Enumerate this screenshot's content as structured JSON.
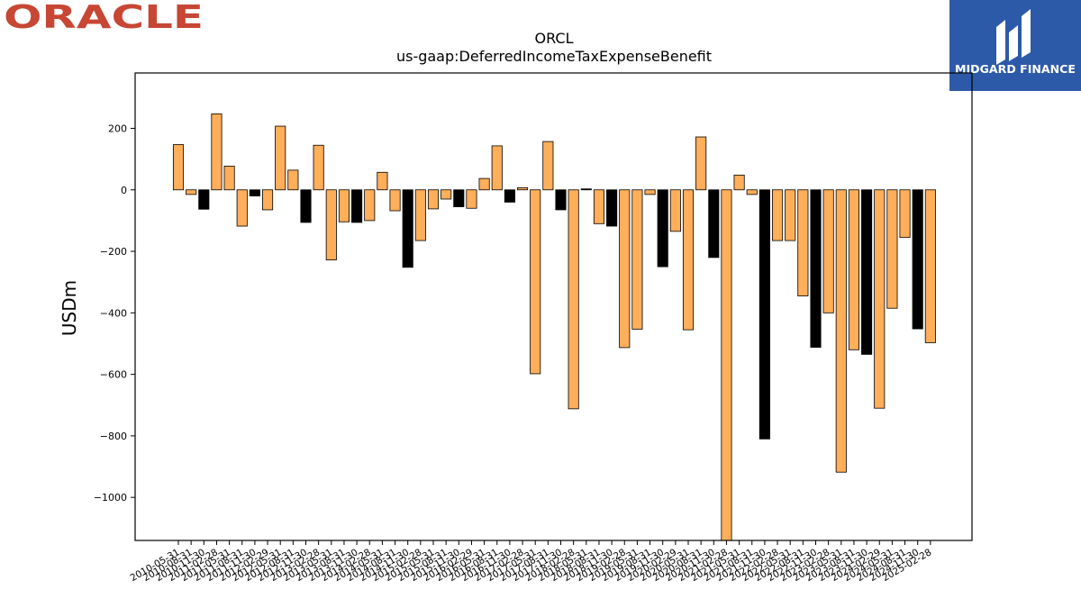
{
  "logos": {
    "left_text": "ORACLE",
    "left_color": "#c74634",
    "right_text": "MIDGARD FINANCE",
    "right_bg": "#2d5aa8",
    "right_color": "#ffffff"
  },
  "chart_data": {
    "type": "bar",
    "title": "ORCL",
    "subtitle": "us-gaap:DeferredIncomeTaxExpenseBenefit",
    "ylabel": "USDm",
    "xlabel": "",
    "ylim": [
      -1140,
      380
    ],
    "yticks": [
      200,
      0,
      -200,
      -400,
      -600,
      -800,
      -1000
    ],
    "grid": false,
    "colors": {
      "positive_pattern": "#ffae5a",
      "alt": "#000000",
      "edge": "#000000"
    },
    "categories": [
      "2010-05-31",
      "2010-08-31",
      "2010-11-30",
      "2011-02-28",
      "2011-05-31",
      "2011-08-31",
      "2011-11-30",
      "2012-02-29",
      "2012-05-31",
      "2012-08-31",
      "2012-11-30",
      "2013-02-28",
      "2013-05-31",
      "2013-08-31",
      "2013-11-30",
      "2014-02-28",
      "2014-05-31",
      "2014-08-31",
      "2014-11-30",
      "2015-02-28",
      "2015-05-31",
      "2015-08-31",
      "2015-11-30",
      "2016-02-29",
      "2016-05-31",
      "2016-08-31",
      "2016-11-30",
      "2017-02-28",
      "2017-05-31",
      "2017-08-31",
      "2017-11-30",
      "2018-02-28",
      "2018-05-31",
      "2018-08-31",
      "2018-11-30",
      "2019-02-28",
      "2019-05-31",
      "2019-08-31",
      "2019-11-30",
      "2020-02-29",
      "2020-05-31",
      "2020-08-31",
      "2020-11-30",
      "2021-02-28",
      "2021-05-31",
      "2021-08-31",
      "2021-11-30",
      "2022-02-28",
      "2022-05-31",
      "2022-08-31",
      "2022-11-30",
      "2023-02-28",
      "2023-05-31",
      "2023-08-31",
      "2023-11-30",
      "2024-02-29",
      "2024-05-31",
      "2024-08-31",
      "2024-11-30",
      "2025-02-28"
    ],
    "visible_xtick_labels": [
      "2010-05-31",
      "2010-08-31",
      "2010-11-30",
      "2011-02-28",
      "2011-05-31",
      "2011-08-31",
      "2011-11-30",
      "2012-02-29",
      "2012-05-31",
      "2012-08-31",
      "2012-11-30",
      "2013-02-28",
      "2013-05-31",
      "2013-08-31",
      "2013-11-30",
      "2014-02-28",
      "2014-05-31",
      "2014-08-31",
      "2014-11-30",
      "2015-02-28",
      "2015-05-31",
      "2015-08-31",
      "2015-11-30",
      "2016-02-29",
      "2016-05-31",
      "2016-08-31",
      "2016-11-30",
      "2017-02-28",
      "2017-05-31",
      "2017-08-31",
      "2017-11-30",
      "2018-02-28",
      "2018-05-31",
      "2018-08-31",
      "2018-11-30",
      "2019-02-28",
      "2019-05-31",
      "2019-08-31",
      "2019-11-30",
      "2020-02-29",
      "2020-05-31",
      "2020-08-31",
      "2020-11-30",
      "2021-02-28",
      "2021-05-31",
      "2021-08-31",
      "2021-11-30",
      "2022-02-28",
      "2022-05-31",
      "2022-08-31",
      "2022-11-30",
      "2023-02-28",
      "2023-05-31",
      "2023-08-31",
      "2023-11-30",
      "2024-02-29",
      "2024-05-31",
      "2024-08-31",
      "2024-11-30",
      "2025-02-28"
    ],
    "values": [
      147,
      -15,
      -63,
      247,
      77,
      -118,
      -20,
      -65,
      207,
      64,
      -106,
      145,
      -228,
      -104,
      -106,
      -100,
      57,
      -68,
      -252,
      -165,
      -62,
      -30,
      -55,
      -60,
      37,
      143,
      -40,
      7,
      -598,
      157,
      -65,
      -712,
      3,
      -110,
      -118,
      -513,
      -453,
      -15,
      -250,
      -135,
      -455,
      172,
      -220,
      -1140,
      48,
      -15,
      -810,
      -165,
      -165,
      -345,
      -512,
      -400,
      -918,
      -520,
      -535,
      -710,
      -385,
      -155,
      -452,
      -497
    ],
    "bar_colors": [
      "#ffae5a",
      "#ffae5a",
      "#000000",
      "#ffae5a",
      "#ffae5a",
      "#ffae5a",
      "#000000",
      "#ffae5a",
      "#ffae5a",
      "#ffae5a",
      "#000000",
      "#ffae5a",
      "#ffae5a",
      "#ffae5a",
      "#000000",
      "#ffae5a",
      "#ffae5a",
      "#ffae5a",
      "#000000",
      "#ffae5a",
      "#ffae5a",
      "#ffae5a",
      "#000000",
      "#ffae5a",
      "#ffae5a",
      "#ffae5a",
      "#000000",
      "#ffae5a",
      "#ffae5a",
      "#ffae5a",
      "#000000",
      "#ffae5a",
      "#000000",
      "#ffae5a",
      "#000000",
      "#ffae5a",
      "#ffae5a",
      "#ffae5a",
      "#000000",
      "#ffae5a",
      "#ffae5a",
      "#ffae5a",
      "#000000",
      "#ffae5a",
      "#ffae5a",
      "#ffae5a",
      "#000000",
      "#ffae5a",
      "#ffae5a",
      "#ffae5a",
      "#000000",
      "#ffae5a",
      "#ffae5a",
      "#ffae5a",
      "#000000",
      "#ffae5a",
      "#ffae5a",
      "#ffae5a",
      "#000000",
      "#ffae5a"
    ]
  }
}
